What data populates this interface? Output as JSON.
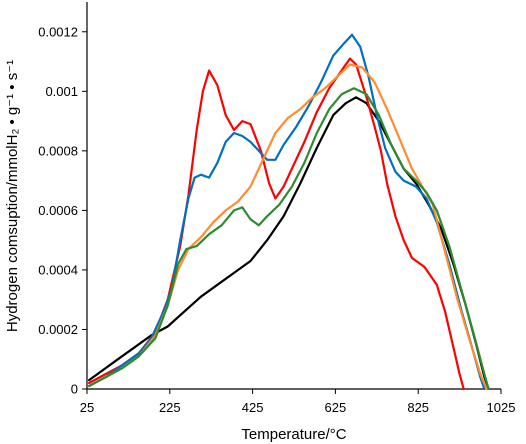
{
  "chart_data": {
    "type": "line",
    "title": "",
    "xlabel": "Temperature/°C",
    "ylabel": "Hydrogen comsuption/mmolH₂ • g⁻¹ • s⁻¹",
    "xlim": [
      25,
      1025
    ],
    "ylim": [
      0,
      0.0013
    ],
    "x_ticks": [
      25,
      225,
      425,
      625,
      825,
      1025
    ],
    "y_ticks": [
      0,
      0.0002,
      0.0004,
      0.0006,
      0.0008,
      0.001,
      0.0012
    ],
    "x_tick_labels": [
      "25",
      "225",
      "425",
      "625",
      "825",
      "1025"
    ],
    "y_tick_labels": [
      "0",
      "0.0002",
      "0.0004",
      "0.0006",
      "0.0008",
      "0.001",
      "0.0012"
    ],
    "grid": false,
    "legend": "none",
    "series": [
      {
        "color": "#000000",
        "points": [
          [
            30,
            3e-05
          ],
          [
            60,
            6e-05
          ],
          [
            100,
            0.0001
          ],
          [
            140,
            0.00014
          ],
          [
            180,
            0.00018
          ],
          [
            220,
            0.00021
          ],
          [
            260,
            0.00026
          ],
          [
            300,
            0.00031
          ],
          [
            340,
            0.00035
          ],
          [
            380,
            0.00039
          ],
          [
            420,
            0.00043
          ],
          [
            460,
            0.0005
          ],
          [
            500,
            0.00058
          ],
          [
            540,
            0.00069
          ],
          [
            580,
            0.00081
          ],
          [
            620,
            0.00092
          ],
          [
            650,
            0.00096
          ],
          [
            675,
            0.00098
          ],
          [
            700,
            0.00096
          ],
          [
            730,
            0.0009
          ],
          [
            760,
            0.00082
          ],
          [
            790,
            0.00074
          ],
          [
            820,
            0.00069
          ],
          [
            850,
            0.00062
          ],
          [
            880,
            0.00054
          ],
          [
            910,
            0.00042
          ],
          [
            940,
            0.00028
          ],
          [
            965,
            0.00015
          ],
          [
            985,
            4e-05
          ],
          [
            995,
            0
          ]
        ]
      },
      {
        "color": "#ff0000",
        "points": [
          [
            30,
            2e-05
          ],
          [
            70,
            5e-05
          ],
          [
            110,
            8e-05
          ],
          [
            150,
            0.00012
          ],
          [
            190,
            0.00019
          ],
          [
            220,
            0.0003
          ],
          [
            250,
            0.00048
          ],
          [
            270,
            0.00065
          ],
          [
            290,
            0.00087
          ],
          [
            305,
            0.001
          ],
          [
            320,
            0.00107
          ],
          [
            340,
            0.00102
          ],
          [
            360,
            0.00092
          ],
          [
            380,
            0.00087
          ],
          [
            400,
            0.0009
          ],
          [
            420,
            0.00089
          ],
          [
            445,
            0.0008
          ],
          [
            465,
            0.00069
          ],
          [
            480,
            0.00064
          ],
          [
            500,
            0.00068
          ],
          [
            520,
            0.00074
          ],
          [
            550,
            0.00083
          ],
          [
            580,
            0.00093
          ],
          [
            610,
            0.00101
          ],
          [
            640,
            0.00107
          ],
          [
            660,
            0.00111
          ],
          [
            675,
            0.00109
          ],
          [
            700,
            0.00098
          ],
          [
            720,
            0.00088
          ],
          [
            735,
            0.0008
          ],
          [
            750,
            0.00069
          ],
          [
            770,
            0.00058
          ],
          [
            790,
            0.0005
          ],
          [
            810,
            0.00044
          ],
          [
            840,
            0.00041
          ],
          [
            870,
            0.00035
          ],
          [
            890,
            0.00026
          ],
          [
            910,
            0.00014
          ],
          [
            925,
            5e-05
          ],
          [
            935,
            0
          ]
        ]
      },
      {
        "color": "#0070c0",
        "points": [
          [
            30,
            1e-05
          ],
          [
            70,
            4e-05
          ],
          [
            110,
            8e-05
          ],
          [
            150,
            0.00012
          ],
          [
            180,
            0.00017
          ],
          [
            210,
            0.00026
          ],
          [
            230,
            0.00034
          ],
          [
            250,
            0.0005
          ],
          [
            270,
            0.00064
          ],
          [
            285,
            0.00071
          ],
          [
            300,
            0.00072
          ],
          [
            320,
            0.00071
          ],
          [
            340,
            0.00076
          ],
          [
            360,
            0.00083
          ],
          [
            380,
            0.00086
          ],
          [
            400,
            0.00085
          ],
          [
            420,
            0.00083
          ],
          [
            440,
            0.0008
          ],
          [
            460,
            0.00077
          ],
          [
            480,
            0.00077
          ],
          [
            500,
            0.00082
          ],
          [
            530,
            0.00088
          ],
          [
            560,
            0.00095
          ],
          [
            590,
            0.00103
          ],
          [
            620,
            0.00112
          ],
          [
            645,
            0.00116
          ],
          [
            665,
            0.00119
          ],
          [
            685,
            0.00115
          ],
          [
            705,
            0.00105
          ],
          [
            725,
            0.00092
          ],
          [
            745,
            0.00081
          ],
          [
            770,
            0.00073
          ],
          [
            790,
            0.0007
          ],
          [
            820,
            0.00068
          ],
          [
            845,
            0.00064
          ],
          [
            870,
            0.00056
          ],
          [
            900,
            0.00042
          ],
          [
            930,
            0.00026
          ],
          [
            955,
            0.00014
          ],
          [
            975,
            4e-05
          ],
          [
            985,
            0
          ]
        ]
      },
      {
        "color": "#ff8c2e",
        "points": [
          [
            30,
            1e-05
          ],
          [
            70,
            4e-05
          ],
          [
            110,
            7e-05
          ],
          [
            150,
            0.00011
          ],
          [
            190,
            0.00018
          ],
          [
            220,
            0.00028
          ],
          [
            245,
            0.0004
          ],
          [
            270,
            0.00047
          ],
          [
            300,
            0.00051
          ],
          [
            330,
            0.00056
          ],
          [
            360,
            0.0006
          ],
          [
            390,
            0.00063
          ],
          [
            420,
            0.00068
          ],
          [
            450,
            0.00077
          ],
          [
            480,
            0.00086
          ],
          [
            510,
            0.00091
          ],
          [
            540,
            0.00094
          ],
          [
            570,
            0.00098
          ],
          [
            600,
            0.00101
          ],
          [
            630,
            0.00105
          ],
          [
            660,
            0.00109
          ],
          [
            690,
            0.00108
          ],
          [
            720,
            0.00103
          ],
          [
            750,
            0.00094
          ],
          [
            780,
            0.00084
          ],
          [
            810,
            0.00074
          ],
          [
            835,
            0.00068
          ],
          [
            860,
            0.00062
          ],
          [
            890,
            0.00046
          ],
          [
            920,
            0.0003
          ],
          [
            950,
            0.00016
          ],
          [
            975,
            5e-05
          ],
          [
            990,
            0
          ]
        ]
      },
      {
        "color": "#2e8b2e",
        "points": [
          [
            30,
            1e-05
          ],
          [
            70,
            4e-05
          ],
          [
            110,
            7e-05
          ],
          [
            150,
            0.00011
          ],
          [
            190,
            0.00017
          ],
          [
            220,
            0.00028
          ],
          [
            245,
            0.00042
          ],
          [
            265,
            0.00047
          ],
          [
            290,
            0.00048
          ],
          [
            320,
            0.00052
          ],
          [
            350,
            0.00055
          ],
          [
            380,
            0.0006
          ],
          [
            400,
            0.00061
          ],
          [
            420,
            0.00057
          ],
          [
            440,
            0.00055
          ],
          [
            460,
            0.00058
          ],
          [
            490,
            0.00062
          ],
          [
            520,
            0.00068
          ],
          [
            550,
            0.00076
          ],
          [
            580,
            0.00086
          ],
          [
            610,
            0.00094
          ],
          [
            640,
            0.00099
          ],
          [
            670,
            0.00101
          ],
          [
            700,
            0.00099
          ],
          [
            730,
            0.00092
          ],
          [
            760,
            0.00082
          ],
          [
            790,
            0.00074
          ],
          [
            820,
            0.0007
          ],
          [
            845,
            0.00066
          ],
          [
            870,
            0.0006
          ],
          [
            900,
            0.00048
          ],
          [
            930,
            0.00033
          ],
          [
            960,
            0.00018
          ],
          [
            985,
            5e-05
          ],
          [
            995,
            0
          ]
        ]
      }
    ]
  }
}
